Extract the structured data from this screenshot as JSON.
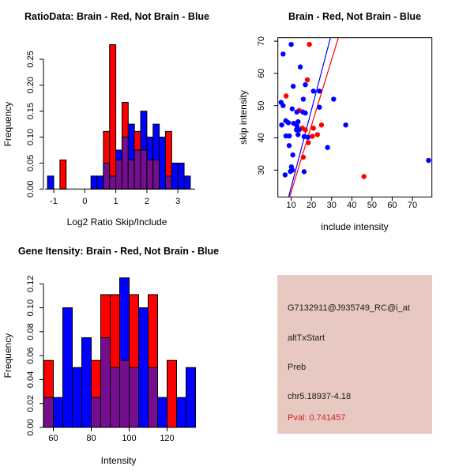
{
  "colors": {
    "red": "#FF0000",
    "blue": "#0000FF",
    "overlap_purple": "#750D8F",
    "axis_black": "#000000",
    "info_panel_bg": "#E8C9C1",
    "info_text": "#1a1a1a",
    "pval_red": "#CC2222"
  },
  "chart_data": [
    {
      "id": "ratio_hist",
      "type": "bar",
      "subtype": "overlaid-histogram",
      "title": "RatioData: Brain - Red, Not Brain - Blue",
      "xlabel": "Log2 Ratio Skip/Include",
      "ylabel": "Frequency",
      "xticks": [
        -1,
        0,
        1,
        2,
        3
      ],
      "xtick_labels": [
        "-1",
        "0",
        "1",
        "2",
        "3"
      ],
      "yticks": [
        0,
        0.05,
        0.1,
        0.15,
        0.2,
        0.25
      ],
      "ytick_labels": [
        "0.00",
        "0.05",
        "0.10",
        "0.15",
        "0.20",
        "0.25"
      ],
      "ylim": [
        0,
        0.25
      ],
      "bin_width": 0.2,
      "legend": {
        "red_series": "Brain",
        "blue_series": "Not Brain"
      },
      "bins": [
        {
          "x": -1.2,
          "red": 0,
          "blue": 0.025
        },
        {
          "x": -0.8,
          "red": 0.056,
          "blue": 0
        },
        {
          "x": 0.2,
          "red": 0,
          "blue": 0.025
        },
        {
          "x": 0.4,
          "red": 0,
          "blue": 0.025
        },
        {
          "x": 0.6,
          "red": 0.111,
          "blue": 0.05
        },
        {
          "x": 0.8,
          "red": 0.278,
          "blue": 0.025
        },
        {
          "x": 1.0,
          "red": 0.056,
          "blue": 0.075
        },
        {
          "x": 1.2,
          "red": 0.167,
          "blue": 0.1
        },
        {
          "x": 1.4,
          "red": 0.056,
          "blue": 0.125
        },
        {
          "x": 1.6,
          "red": 0.111,
          "blue": 0.075
        },
        {
          "x": 1.8,
          "red": 0.075,
          "blue": 0.15
        },
        {
          "x": 2.0,
          "red": 0.056,
          "blue": 0.1
        },
        {
          "x": 2.2,
          "red": 0.056,
          "blue": 0.125
        },
        {
          "x": 2.4,
          "red": 0,
          "blue": 0.1
        },
        {
          "x": 2.6,
          "red": 0.111,
          "blue": 0.025
        },
        {
          "x": 2.8,
          "red": 0,
          "blue": 0.05
        },
        {
          "x": 3.0,
          "red": 0,
          "blue": 0.05
        },
        {
          "x": 3.2,
          "red": 0,
          "blue": 0.025
        }
      ]
    },
    {
      "id": "scatter",
      "type": "scatter",
      "title": "Brain - Red, Not Brain - Blue",
      "xlabel": "include intensity",
      "ylabel": "skip intensity",
      "xticks": [
        10,
        20,
        30,
        40,
        50,
        60,
        70
      ],
      "xtick_labels": [
        "10",
        "20",
        "30",
        "40",
        "50",
        "60",
        "70"
      ],
      "yticks": [
        30,
        40,
        50,
        60,
        70
      ],
      "ytick_labels": [
        "30",
        "40",
        "50",
        "60",
        "70"
      ],
      "xlim": [
        3.4,
        79.7
      ],
      "ylim": [
        21.6,
        71.0
      ],
      "series": [
        {
          "name": "Brain (red)",
          "color_key": "red",
          "points": [
            [
              19,
              69
            ],
            [
              18,
              58
            ],
            [
              7.5,
              53
            ],
            [
              14,
              48.5
            ],
            [
              15.5,
              43
            ],
            [
              17,
              42.5
            ],
            [
              21,
              43
            ],
            [
              25,
              44
            ],
            [
              18.5,
              38.5
            ],
            [
              20.5,
              40.5
            ],
            [
              23,
              41
            ],
            [
              16,
              34
            ],
            [
              46,
              28
            ]
          ]
        },
        {
          "name": "Not Brain (blue)",
          "color_key": "blue",
          "points": [
            [
              10,
              69
            ],
            [
              6,
              66
            ],
            [
              14.5,
              62
            ],
            [
              17,
              56.5
            ],
            [
              11,
              56
            ],
            [
              21,
              54.5
            ],
            [
              24,
              54.5
            ],
            [
              31,
              52
            ],
            [
              16,
              52
            ],
            [
              6,
              50
            ],
            [
              5,
              51
            ],
            [
              10.5,
              49
            ],
            [
              12.8,
              48
            ],
            [
              15.8,
              48
            ],
            [
              17,
              47.7
            ],
            [
              24,
              49.5
            ],
            [
              7.3,
              45.3
            ],
            [
              5.3,
              44
            ],
            [
              8.6,
              44.7
            ],
            [
              11.2,
              44.5
            ],
            [
              12.9,
              43.6
            ],
            [
              13.4,
              45
            ],
            [
              37,
              44
            ],
            [
              12.6,
              42.5
            ],
            [
              13.9,
              42.5
            ],
            [
              13.4,
              41
            ],
            [
              7.4,
              40.6
            ],
            [
              9.1,
              40.6
            ],
            [
              16.4,
              40.4
            ],
            [
              18.3,
              40.2
            ],
            [
              9,
              37.6
            ],
            [
              28,
              37
            ],
            [
              10.8,
              34.7
            ],
            [
              10.1,
              31
            ],
            [
              10.6,
              30
            ],
            [
              16.4,
              29.5
            ],
            [
              9.6,
              29.6
            ],
            [
              7,
              28.5
            ],
            [
              78,
              33
            ]
          ]
        }
      ],
      "fit_lines": [
        {
          "name": "blue-fit",
          "color_key": "blue",
          "x1": 8.7,
          "y1": 21.6,
          "x2": 29.4,
          "y2": 71.0
        },
        {
          "name": "red-fit",
          "color_key": "red",
          "x1": 9.2,
          "y1": 21.6,
          "x2": 33.3,
          "y2": 71.0
        }
      ]
    },
    {
      "id": "gene_hist",
      "type": "bar",
      "subtype": "overlaid-histogram",
      "title": "Gene Itensity: Brain - Red, Not Brain - Blue",
      "xlabel": "Intensity",
      "ylabel": "Frequency",
      "xticks": [
        60,
        80,
        100,
        120
      ],
      "xtick_labels": [
        "60",
        "80",
        "100",
        "120"
      ],
      "yticks": [
        0,
        0.02,
        0.04,
        0.06,
        0.08,
        0.1,
        0.12
      ],
      "ytick_labels": [
        "0.00",
        "0.02",
        "0.04",
        "0.06",
        "0.08",
        "0.10",
        "0.12"
      ],
      "ylim": [
        0,
        0.12
      ],
      "bin_width": 5,
      "legend": {
        "red_series": "Brain",
        "blue_series": "Not Brain"
      },
      "bins": [
        {
          "x": 55,
          "red": 0.056,
          "blue": 0.025
        },
        {
          "x": 60,
          "red": 0,
          "blue": 0.025
        },
        {
          "x": 65,
          "red": 0,
          "blue": 0.1
        },
        {
          "x": 70,
          "red": 0,
          "blue": 0.05
        },
        {
          "x": 75,
          "red": 0,
          "blue": 0.075
        },
        {
          "x": 80,
          "red": 0.056,
          "blue": 0.025
        },
        {
          "x": 85,
          "red": 0.111,
          "blue": 0.075
        },
        {
          "x": 90,
          "red": 0.111,
          "blue": 0.05
        },
        {
          "x": 95,
          "red": 0.056,
          "blue": 0.125
        },
        {
          "x": 100,
          "red": 0.111,
          "blue": 0.05
        },
        {
          "x": 105,
          "red": 0,
          "blue": 0.1
        },
        {
          "x": 110,
          "red": 0.111,
          "blue": 0.05
        },
        {
          "x": 115,
          "red": 0,
          "blue": 0.025
        },
        {
          "x": 120,
          "red": 0.056,
          "blue": 0
        },
        {
          "x": 125,
          "red": 0,
          "blue": 0.025
        },
        {
          "x": 130,
          "red": 0,
          "blue": 0.05
        }
      ]
    }
  ],
  "info_panel": {
    "probe_id": "G7132911@J935749_RC@i_at",
    "event_type": "altTxStart",
    "gene_name": "Preb",
    "location": "chr5.18937-4.18",
    "pval_label": "Pval: 0.741457"
  }
}
